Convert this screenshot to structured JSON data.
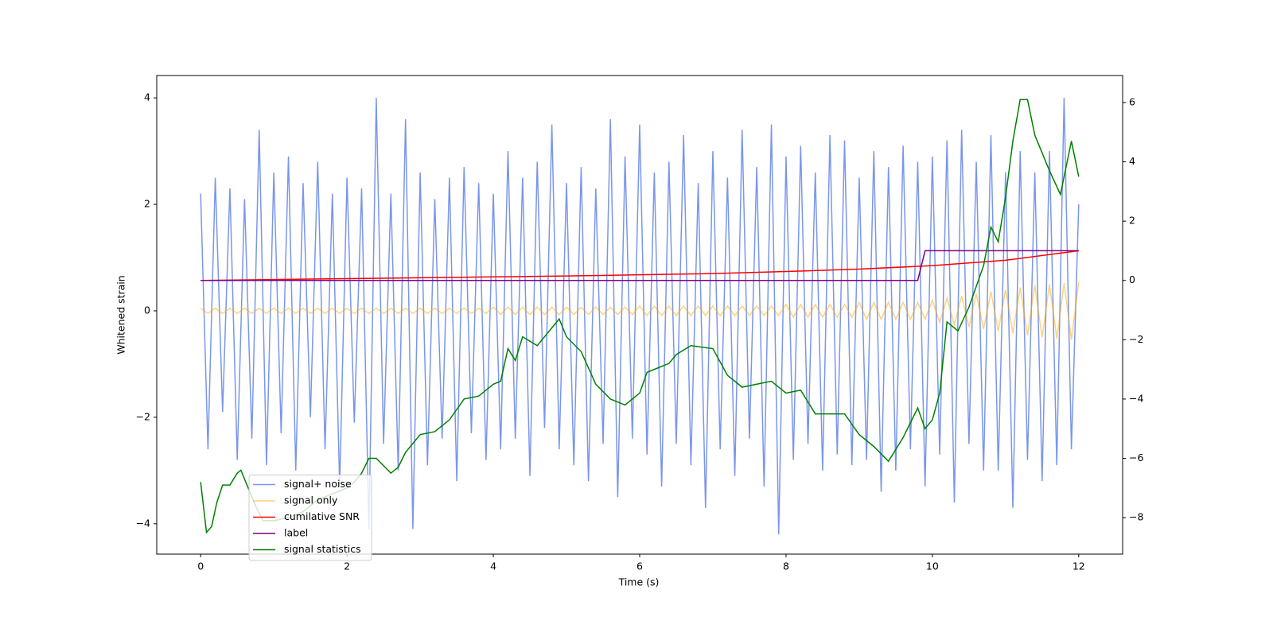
{
  "chart_data": {
    "type": "line",
    "xlabel": "Time (s)",
    "ylabel": "Whitened strain",
    "xlim": [
      -0.6,
      12.6
    ],
    "ylim": [
      -4.57,
      4.42
    ],
    "y2lim": [
      -9.23,
      6.91
    ],
    "xticks": [
      0,
      2,
      4,
      6,
      8,
      10,
      12
    ],
    "yticks": [
      {
        "value": -4,
        "label": "−4"
      },
      {
        "value": -2,
        "label": "−2"
      },
      0,
      2,
      4
    ],
    "y2ticks": [
      {
        "value": -8,
        "label": "−8"
      },
      {
        "value": -6,
        "label": "−6"
      },
      {
        "value": -4,
        "label": "−4"
      },
      {
        "value": -2,
        "label": "−2"
      },
      0,
      2,
      4,
      6
    ],
    "legend": "lower left",
    "x": [
      0,
      0.1,
      0.2,
      0.3,
      0.4,
      0.5,
      0.6,
      0.7,
      0.8,
      0.9,
      1,
      1.1,
      1.2,
      1.3,
      1.4,
      1.5,
      1.6,
      1.7,
      1.8,
      1.9,
      2,
      2.1,
      2.2,
      2.3,
      2.4,
      2.5,
      2.6,
      2.7,
      2.8,
      2.9,
      3,
      3.1,
      3.2,
      3.3,
      3.4,
      3.5,
      3.6,
      3.7,
      3.8,
      3.9,
      4,
      4.1,
      4.2,
      4.3,
      4.4,
      4.5,
      4.6,
      4.7,
      4.8,
      4.9,
      5,
      5.1,
      5.2,
      5.3,
      5.4,
      5.5,
      5.6,
      5.7,
      5.8,
      5.9,
      6,
      6.1,
      6.2,
      6.3,
      6.4,
      6.5,
      6.6,
      6.7,
      6.8,
      6.9,
      7,
      7.1,
      7.2,
      7.3,
      7.4,
      7.5,
      7.6,
      7.7,
      7.8,
      7.9,
      8,
      8.1,
      8.2,
      8.3,
      8.4,
      8.5,
      8.6,
      8.7,
      8.8,
      8.9,
      9,
      9.1,
      9.2,
      9.3,
      9.4,
      9.5,
      9.6,
      9.7,
      9.8,
      9.9,
      10,
      10.1,
      10.2,
      10.3,
      10.4,
      10.5,
      10.6,
      10.7,
      10.8,
      10.9,
      11,
      11.1,
      11.2,
      11.3,
      11.4,
      11.5,
      11.6,
      11.7,
      11.8,
      11.9,
      12
    ],
    "series": [
      {
        "name": "signal+ noise",
        "color": "royalblue",
        "alpha": 0.7,
        "values": [
          2.2,
          -2.6,
          2.5,
          -1.9,
          2.3,
          -2.8,
          2.1,
          -2.4,
          3.4,
          -2.9,
          2.6,
          -2.3,
          2.9,
          -3.0,
          2.4,
          -2.0,
          2.8,
          -2.6,
          2.2,
          -3.3,
          2.5,
          -2.1,
          2.3,
          -4.1,
          4.0,
          -2.5,
          2.2,
          -3.0,
          3.6,
          -4.1,
          2.6,
          -2.9,
          2.1,
          -2.4,
          2.5,
          -3.2,
          2.7,
          -2.3,
          2.4,
          -2.8,
          2.2,
          -2.6,
          3.0,
          -2.4,
          2.5,
          -3.1,
          2.8,
          -2.2,
          3.5,
          -2.6,
          2.4,
          -2.9,
          2.7,
          -3.2,
          2.3,
          -2.5,
          3.6,
          -3.5,
          2.9,
          -2.4,
          3.5,
          -2.7,
          2.6,
          -3.3,
          2.8,
          -2.5,
          3.3,
          -2.9,
          2.4,
          -3.7,
          3.0,
          -2.6,
          2.5,
          -3.1,
          3.4,
          -2.4,
          2.7,
          -3.3,
          3.5,
          -4.2,
          2.9,
          -2.8,
          3.1,
          -2.5,
          2.6,
          -3.0,
          3.3,
          -2.7,
          3.2,
          -2.9,
          2.5,
          -2.8,
          3.0,
          -3.4,
          2.7,
          -3.0,
          3.1,
          -2.6,
          2.8,
          -3.3,
          2.9,
          -2.7,
          3.2,
          -3.6,
          3.4,
          -2.5,
          2.8,
          -3.0,
          3.3,
          -3.0,
          2.6,
          -3.7,
          3.0,
          -2.8,
          2.6,
          -3.2,
          3.0,
          -2.9,
          4.0,
          -2.6,
          2.0
        ]
      },
      {
        "name": "signal only",
        "color": "orange",
        "alpha": 0.5,
        "values": [
          0.05,
          -0.05,
          0.05,
          -0.05,
          0.05,
          -0.05,
          0.05,
          -0.05,
          0.05,
          -0.05,
          0.05,
          -0.05,
          0.05,
          -0.05,
          0.05,
          -0.05,
          0.05,
          -0.05,
          0.05,
          -0.05,
          0.05,
          -0.05,
          0.05,
          -0.05,
          0.05,
          -0.05,
          0.05,
          -0.05,
          0.05,
          -0.05,
          0.05,
          -0.05,
          0.05,
          -0.05,
          0.05,
          -0.05,
          0.05,
          -0.05,
          0.05,
          -0.05,
          0.07,
          -0.07,
          0.07,
          -0.07,
          0.07,
          -0.07,
          0.07,
          -0.07,
          0.07,
          -0.07,
          0.07,
          -0.07,
          0.07,
          -0.07,
          0.07,
          -0.07,
          0.07,
          -0.07,
          0.07,
          -0.07,
          0.09,
          -0.09,
          0.09,
          -0.09,
          0.09,
          -0.09,
          0.09,
          -0.09,
          0.09,
          -0.09,
          0.09,
          -0.09,
          0.09,
          -0.09,
          0.09,
          -0.09,
          0.09,
          -0.09,
          0.09,
          -0.09,
          0.12,
          -0.12,
          0.12,
          -0.12,
          0.12,
          -0.12,
          0.12,
          -0.12,
          0.12,
          -0.12,
          0.16,
          -0.16,
          0.16,
          -0.16,
          0.16,
          -0.16,
          0.16,
          -0.16,
          0.16,
          -0.16,
          0.2,
          -0.22,
          0.24,
          -0.26,
          0.28,
          -0.3,
          0.32,
          -0.34,
          0.36,
          -0.38,
          0.4,
          -0.42,
          0.44,
          -0.46,
          0.48,
          -0.5,
          0.5,
          -0.52,
          0.52,
          -0.54,
          0.54
        ]
      },
      {
        "name": "cumilative SNR",
        "color": "red",
        "axis": "y2",
        "x": [
          0,
          1,
          2,
          3,
          4,
          5,
          6,
          7,
          8,
          9,
          10,
          11,
          12
        ],
        "values": [
          0,
          0.03,
          0.06,
          0.09,
          0.12,
          0.15,
          0.19,
          0.23,
          0.3,
          0.38,
          0.5,
          0.68,
          1.0
        ]
      },
      {
        "name": "label",
        "color": "purple",
        "axis": "y2",
        "x": [
          0,
          9.8,
          9.9,
          12
        ],
        "values": [
          0,
          0,
          1,
          1
        ]
      },
      {
        "name": "signal statistics",
        "color": "green",
        "axis": "y2",
        "x": [
          0,
          0.08,
          0.15,
          0.22,
          0.3,
          0.4,
          0.5,
          0.55,
          0.65,
          0.75,
          0.85,
          1.0,
          1.2,
          1.4,
          1.6,
          1.8,
          2.0,
          2.1,
          2.2,
          2.3,
          2.4,
          2.6,
          2.7,
          2.8,
          3.0,
          3.2,
          3.4,
          3.6,
          3.8,
          4.0,
          4.1,
          4.2,
          4.3,
          4.4,
          4.6,
          4.8,
          4.9,
          5.0,
          5.2,
          5.4,
          5.6,
          5.8,
          6.0,
          6.1,
          6.2,
          6.4,
          6.5,
          6.7,
          7.0,
          7.2,
          7.4,
          7.6,
          7.8,
          8.0,
          8.2,
          8.4,
          8.6,
          8.8,
          9.0,
          9.2,
          9.4,
          9.6,
          9.8,
          9.9,
          10.0,
          10.1,
          10.2,
          10.35,
          10.5,
          10.7,
          10.8,
          10.9,
          11.0,
          11.1,
          11.2,
          11.3,
          11.4,
          11.6,
          11.75,
          11.9,
          12.0
        ],
        "values": [
          -6.8,
          -8.5,
          -8.3,
          -7.5,
          -6.9,
          -6.9,
          -6.5,
          -6.4,
          -7,
          -7.6,
          -8.1,
          -8.1,
          -8.0,
          -7.8,
          -7.4,
          -7.2,
          -7.0,
          -6.8,
          -6.5,
          -6.0,
          -6.0,
          -6.5,
          -6.3,
          -5.8,
          -5.2,
          -5.1,
          -4.7,
          -4.0,
          -3.9,
          -3.5,
          -3.4,
          -2.3,
          -2.7,
          -1.9,
          -2.2,
          -1.6,
          -1.3,
          -1.9,
          -2.4,
          -3.5,
          -4.0,
          -4.2,
          -3.8,
          -3.1,
          -3.0,
          -2.8,
          -2.5,
          -2.2,
          -2.3,
          -3.2,
          -3.6,
          -3.5,
          -3.4,
          -3.8,
          -3.7,
          -4.5,
          -4.5,
          -4.5,
          -5.2,
          -5.6,
          -6.1,
          -5.3,
          -4.3,
          -5.0,
          -4.7,
          -3.8,
          -1.4,
          -1.7,
          -0.9,
          0.5,
          1.8,
          1.3,
          2.8,
          4.7,
          6.1,
          6.1,
          4.9,
          3.7,
          2.9,
          4.7,
          3.5
        ]
      }
    ]
  }
}
